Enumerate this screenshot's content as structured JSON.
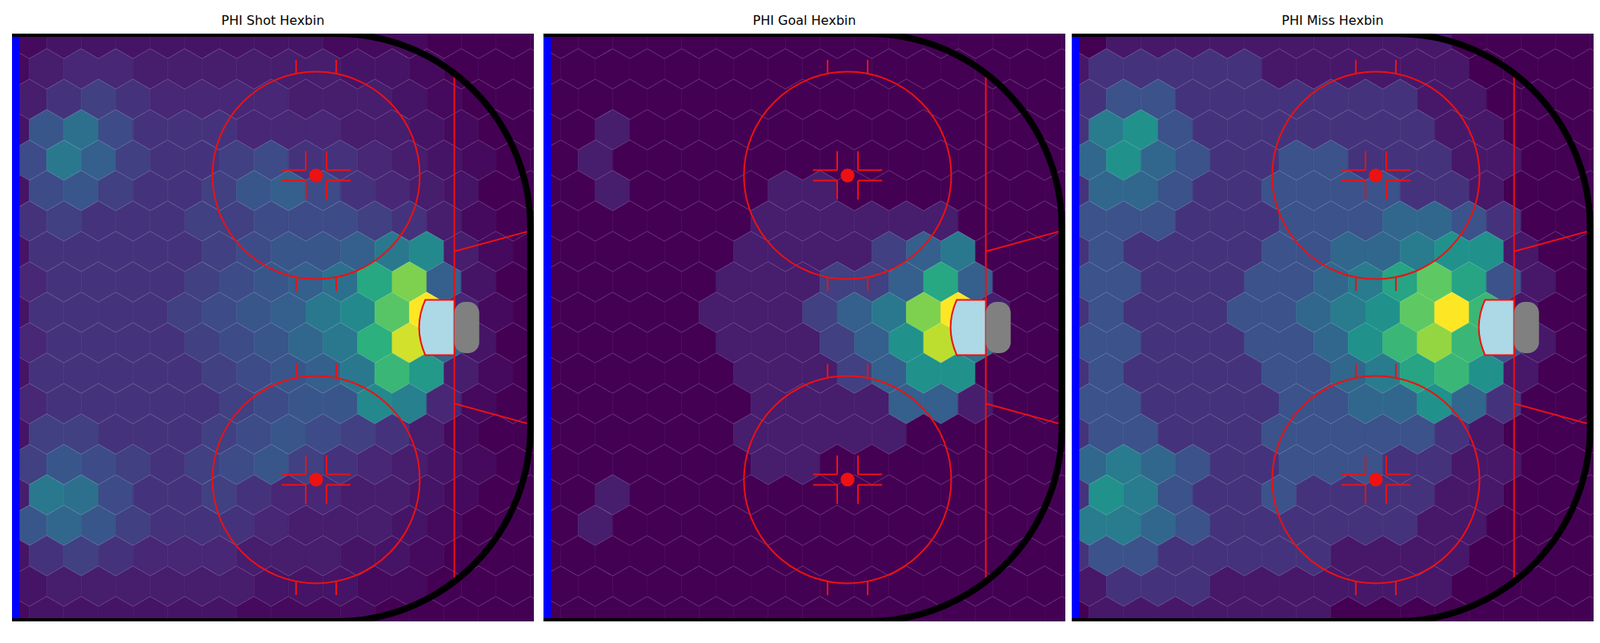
{
  "chart_data": [
    {
      "type": "hexbin",
      "title": "PHI Shot Hexbin",
      "color": "viridis",
      "xlim": [
        25,
        100.5
      ],
      "ylim": [
        -42.5,
        42.5
      ],
      "clim": [
        0,
        30
      ],
      "x_even": [
        27.5,
        32.5,
        37.5,
        42.5,
        47.5,
        52.5,
        57.5,
        62.5,
        67.5,
        72.5,
        77.5,
        82.5,
        87.5,
        92.5,
        97.5,
        102.5
      ],
      "x_odd": [
        25,
        30,
        35,
        40,
        45,
        50,
        55,
        60,
        65,
        70,
        75,
        80,
        85,
        90,
        95,
        100
      ],
      "y": [
        41.8,
        37.4,
        33,
        28.6,
        24.2,
        19.8,
        15.4,
        11,
        6.6,
        2.2,
        -2.2,
        -6.6,
        -11,
        -15.4,
        -19.8,
        -24.2,
        -28.6,
        -33,
        -37.4,
        -41.8
      ],
      "counts": [
        [
          1,
          2,
          2,
          2,
          2,
          2,
          2,
          2,
          2,
          1,
          1,
          1,
          0,
          0,
          0,
          0
        ],
        [
          1,
          3,
          4,
          4,
          3,
          3,
          3,
          3,
          3,
          3,
          2,
          2,
          1,
          0,
          0,
          0
        ],
        [
          3,
          5,
          6,
          5,
          4,
          4,
          4,
          4,
          3,
          3,
          3,
          2,
          1,
          0,
          0,
          0
        ],
        [
          2,
          8,
          11,
          7,
          5,
          5,
          5,
          4,
          4,
          4,
          3,
          3,
          2,
          1,
          0,
          0
        ],
        [
          7,
          12,
          9,
          6,
          5,
          5,
          6,
          7,
          5,
          5,
          4,
          3,
          2,
          1,
          0,
          0
        ],
        [
          2,
          7,
          8,
          6,
          5,
          5,
          6,
          8,
          9,
          7,
          5,
          4,
          3,
          2,
          0,
          0
        ],
        [
          5,
          6,
          5,
          5,
          5,
          6,
          6,
          7,
          7,
          7,
          6,
          5,
          3,
          1,
          0,
          0
        ],
        [
          2,
          5,
          5,
          5,
          5,
          5,
          6,
          7,
          8,
          8,
          9,
          12,
          14,
          3,
          1,
          0
        ],
        [
          4,
          5,
          5,
          5,
          5,
          6,
          7,
          8,
          9,
          11,
          18,
          24,
          9,
          2,
          0,
          0
        ],
        [
          2,
          5,
          5,
          5,
          5,
          6,
          7,
          8,
          9,
          12,
          14,
          22,
          30,
          4,
          1,
          0
        ],
        [
          4,
          5,
          5,
          5,
          5,
          6,
          7,
          8,
          10,
          12,
          19,
          28,
          10,
          2,
          0,
          0
        ],
        [
          2,
          5,
          5,
          5,
          5,
          5,
          6,
          7,
          8,
          9,
          12,
          20,
          16,
          3,
          1,
          0
        ],
        [
          4,
          5,
          5,
          5,
          5,
          5,
          6,
          7,
          8,
          8,
          14,
          13,
          4,
          1,
          0,
          0
        ],
        [
          2,
          6,
          6,
          5,
          5,
          5,
          6,
          7,
          8,
          7,
          6,
          5,
          3,
          1,
          0,
          0
        ],
        [
          6,
          8,
          7,
          6,
          5,
          6,
          7,
          8,
          6,
          5,
          4,
          3,
          2,
          1,
          0,
          0
        ],
        [
          3,
          12,
          11,
          7,
          5,
          5,
          6,
          5,
          4,
          4,
          3,
          3,
          2,
          1,
          0,
          0
        ],
        [
          8,
          10,
          8,
          6,
          5,
          5,
          5,
          4,
          3,
          3,
          3,
          2,
          1,
          0,
          0,
          0
        ],
        [
          2,
          5,
          6,
          5,
          4,
          4,
          4,
          3,
          3,
          3,
          2,
          2,
          1,
          0,
          0,
          0
        ],
        [
          2,
          3,
          3,
          3,
          3,
          3,
          3,
          2,
          2,
          2,
          1,
          1,
          0,
          0,
          0,
          0
        ],
        [
          1,
          2,
          2,
          2,
          2,
          2,
          2,
          1,
          1,
          1,
          1,
          0,
          0,
          0,
          0,
          0
        ]
      ]
    },
    {
      "type": "hexbin",
      "title": "PHI Goal Hexbin",
      "color": "viridis",
      "xlim": [
        25,
        100.5
      ],
      "ylim": [
        -42.5,
        42.5
      ],
      "clim": [
        0,
        10
      ],
      "x_even": [
        27.5,
        32.5,
        37.5,
        42.5,
        47.5,
        52.5,
        57.5,
        62.5,
        67.5,
        72.5,
        77.5,
        82.5,
        87.5,
        92.5,
        97.5,
        102.5
      ],
      "x_odd": [
        25,
        30,
        35,
        40,
        45,
        50,
        55,
        60,
        65,
        70,
        75,
        80,
        85,
        90,
        95,
        100
      ],
      "y": [
        41.8,
        37.4,
        33,
        28.6,
        24.2,
        19.8,
        15.4,
        11,
        6.6,
        2.2,
        -2.2,
        -6.6,
        -11,
        -15.4,
        -19.8,
        -24.2,
        -28.6,
        -33,
        -37.4,
        -41.8
      ],
      "counts": [
        [
          0,
          0,
          0,
          0,
          0,
          0,
          0,
          0,
          0,
          0,
          0,
          0,
          0,
          0,
          0,
          0
        ],
        [
          0,
          0,
          0,
          0,
          0,
          0,
          0,
          0,
          0,
          0,
          0,
          0,
          0,
          0,
          0,
          0
        ],
        [
          0,
          0,
          0,
          0,
          0,
          0,
          0,
          0,
          0,
          0,
          0,
          0,
          0,
          0,
          0,
          0
        ],
        [
          0,
          0,
          1,
          0,
          0,
          0,
          0,
          0,
          0,
          0,
          0,
          0,
          0,
          0,
          0,
          0
        ],
        [
          0,
          1,
          0,
          0,
          0,
          0,
          0,
          0,
          0,
          0,
          0,
          0,
          0,
          0,
          0,
          0
        ],
        [
          0,
          0,
          1,
          0,
          0,
          0,
          0,
          1,
          1,
          0,
          0,
          0,
          0,
          0,
          0,
          0
        ],
        [
          0,
          0,
          0,
          0,
          0,
          0,
          1,
          1,
          1,
          1,
          1,
          1,
          0,
          0,
          0,
          0
        ],
        [
          0,
          0,
          0,
          0,
          0,
          0,
          1,
          1,
          1,
          1,
          2,
          3,
          4,
          0,
          0,
          0
        ],
        [
          0,
          0,
          0,
          0,
          0,
          1,
          1,
          1,
          2,
          2,
          3,
          6,
          3,
          0,
          0,
          0
        ],
        [
          0,
          0,
          0,
          0,
          0,
          1,
          1,
          1,
          2,
          3,
          4,
          8,
          10,
          1,
          0,
          0
        ],
        [
          0,
          0,
          0,
          0,
          0,
          1,
          1,
          1,
          2,
          3,
          5,
          9,
          4,
          0,
          0,
          0
        ],
        [
          0,
          0,
          0,
          0,
          0,
          0,
          1,
          1,
          1,
          2,
          3,
          5,
          5,
          0,
          0,
          0
        ],
        [
          0,
          0,
          0,
          0,
          0,
          0,
          1,
          1,
          1,
          1,
          3,
          3,
          1,
          0,
          0,
          0
        ],
        [
          0,
          0,
          0,
          0,
          0,
          0,
          1,
          1,
          1,
          1,
          1,
          0,
          0,
          0,
          0,
          0
        ],
        [
          0,
          0,
          0,
          0,
          0,
          0,
          1,
          1,
          0,
          0,
          0,
          0,
          0,
          0,
          0,
          0
        ],
        [
          0,
          0,
          1,
          0,
          0,
          0,
          0,
          0,
          0,
          0,
          0,
          0,
          0,
          0,
          0,
          0
        ],
        [
          0,
          1,
          0,
          0,
          0,
          0,
          0,
          0,
          0,
          0,
          0,
          0,
          0,
          0,
          0,
          0
        ],
        [
          0,
          0,
          0,
          0,
          0,
          0,
          0,
          0,
          0,
          0,
          0,
          0,
          0,
          0,
          0,
          0
        ],
        [
          0,
          0,
          0,
          0,
          0,
          0,
          0,
          0,
          0,
          0,
          0,
          0,
          0,
          0,
          0,
          0
        ],
        [
          0,
          0,
          0,
          0,
          0,
          0,
          0,
          0,
          0,
          0,
          0,
          0,
          0,
          0,
          0,
          0
        ]
      ]
    },
    {
      "type": "hexbin",
      "title": "PHI Miss Hexbin",
      "color": "viridis",
      "xlim": [
        25,
        100.5
      ],
      "ylim": [
        -42.5,
        42.5
      ],
      "clim": [
        0,
        12
      ],
      "x_even": [
        27.5,
        32.5,
        37.5,
        42.5,
        47.5,
        52.5,
        57.5,
        62.5,
        67.5,
        72.5,
        77.5,
        82.5,
        87.5,
        92.5,
        97.5,
        102.5
      ],
      "x_odd": [
        25,
        30,
        35,
        40,
        45,
        50,
        55,
        60,
        65,
        70,
        75,
        80,
        85,
        90,
        95,
        100
      ],
      "y": [
        41.8,
        37.4,
        33,
        28.6,
        24.2,
        19.8,
        15.4,
        11,
        6.6,
        2.2,
        -2.2,
        -6.6,
        -11,
        -15.4,
        -19.8,
        -24.2,
        -28.6,
        -33,
        -37.4,
        -41.8
      ],
      "counts": [
        [
          0,
          1,
          1,
          1,
          1,
          1,
          1,
          1,
          1,
          1,
          1,
          0,
          0,
          0,
          0,
          0
        ],
        [
          1,
          2,
          2,
          2,
          2,
          2,
          1,
          1,
          1,
          1,
          1,
          1,
          0,
          0,
          0,
          0
        ],
        [
          2,
          3,
          3,
          2,
          2,
          2,
          2,
          2,
          2,
          2,
          1,
          1,
          0,
          0,
          0,
          0
        ],
        [
          2,
          5,
          6,
          3,
          2,
          2,
          2,
          2,
          2,
          2,
          2,
          1,
          1,
          0,
          0,
          0
        ],
        [
          4,
          6,
          4,
          3,
          2,
          2,
          3,
          3,
          2,
          2,
          2,
          1,
          1,
          0,
          0,
          0
        ],
        [
          2,
          4,
          4,
          3,
          2,
          2,
          3,
          3,
          3,
          3,
          2,
          2,
          1,
          0,
          0,
          0
        ],
        [
          3,
          3,
          3,
          2,
          2,
          2,
          3,
          3,
          3,
          4,
          4,
          3,
          2,
          0,
          0,
          0
        ],
        [
          2,
          3,
          2,
          2,
          2,
          2,
          3,
          3,
          4,
          4,
          5,
          6,
          6,
          1,
          0,
          0
        ],
        [
          3,
          3,
          2,
          2,
          2,
          3,
          3,
          4,
          5,
          7,
          9,
          7,
          3,
          1,
          0,
          0
        ],
        [
          2,
          3,
          2,
          2,
          2,
          3,
          3,
          4,
          5,
          6,
          9,
          12,
          8,
          1,
          0,
          0
        ],
        [
          3,
          3,
          2,
          2,
          2,
          3,
          3,
          4,
          6,
          8,
          10,
          8,
          3,
          1,
          0,
          0
        ],
        [
          2,
          3,
          2,
          2,
          2,
          2,
          3,
          3,
          4,
          5,
          7,
          8,
          6,
          1,
          0,
          0
        ],
        [
          3,
          3,
          2,
          2,
          2,
          2,
          3,
          3,
          4,
          4,
          6,
          4,
          2,
          0,
          0,
          0
        ],
        [
          2,
          3,
          3,
          2,
          2,
          2,
          3,
          3,
          3,
          3,
          3,
          2,
          1,
          0,
          0,
          0
        ],
        [
          4,
          5,
          4,
          3,
          2,
          2,
          3,
          3,
          3,
          2,
          2,
          1,
          1,
          0,
          0,
          0
        ],
        [
          2,
          6,
          5,
          3,
          2,
          2,
          3,
          2,
          2,
          2,
          2,
          1,
          1,
          0,
          0,
          0
        ],
        [
          5,
          5,
          4,
          3,
          2,
          2,
          2,
          2,
          2,
          2,
          1,
          1,
          0,
          0,
          0,
          0
        ],
        [
          2,
          3,
          3,
          2,
          2,
          2,
          2,
          2,
          1,
          1,
          1,
          1,
          0,
          0,
          0,
          0
        ],
        [
          1,
          2,
          2,
          2,
          1,
          1,
          1,
          1,
          1,
          1,
          1,
          0,
          0,
          0,
          0,
          0
        ],
        [
          0,
          1,
          1,
          1,
          1,
          1,
          1,
          1,
          0,
          0,
          0,
          0,
          0,
          0,
          0,
          0
        ]
      ]
    }
  ]
}
